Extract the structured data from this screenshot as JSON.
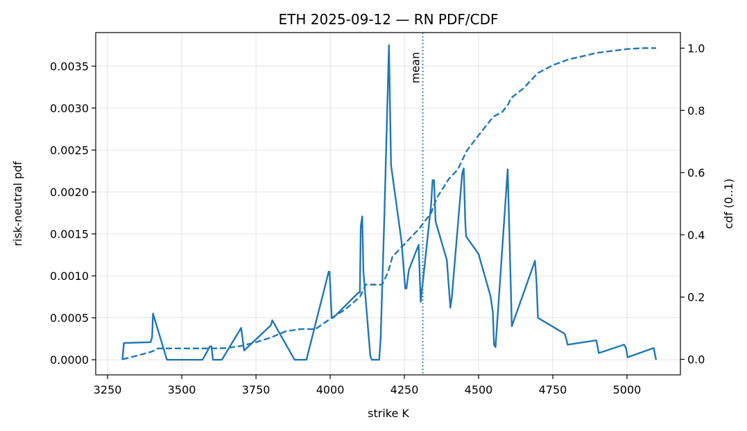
{
  "chart_data": {
    "type": "line",
    "title": "ETH 2025-09-12 — RN PDF/CDF",
    "xlabel": "strike  K",
    "ylabel": "risk-neutral pdf",
    "y2label": "cdf  (0..1)",
    "xlim": [
      3210,
      5180
    ],
    "ylim": [
      -0.00018,
      0.0039
    ],
    "y2lim": [
      -0.05,
      1.05
    ],
    "xticks": [
      3250,
      3500,
      3750,
      4000,
      4250,
      4500,
      4750,
      5000
    ],
    "xtick_labels": [
      "3250",
      "3500",
      "3750",
      "4000",
      "4250",
      "4500",
      "4750",
      "5000"
    ],
    "yticks": [
      0,
      0.0005,
      0.001,
      0.0015,
      0.002,
      0.0025,
      0.003,
      0.0035
    ],
    "ytick_labels": [
      "0.0000",
      "0.0005",
      "0.0010",
      "0.0015",
      "0.0020",
      "0.0025",
      "0.0030",
      "0.0035"
    ],
    "y2ticks": [
      0,
      0.2,
      0.4,
      0.6,
      0.8,
      1.0
    ],
    "y2tick_labels": [
      "0.0",
      "0.2",
      "0.4",
      "0.6",
      "0.8",
      "1.0"
    ],
    "grid": true,
    "color": "#1f77b4",
    "mean": {
      "x": 4312,
      "label": "mean"
    },
    "series": [
      {
        "name": "pdf",
        "axis": "left",
        "style": "solid",
        "points": [
          [
            3300,
            0.0
          ],
          [
            3305,
            0.0002
          ],
          [
            3395,
            0.00021
          ],
          [
            3400,
            0.00027
          ],
          [
            3403,
            0.00055
          ],
          [
            3450,
            0.0
          ],
          [
            3570,
            0.0
          ],
          [
            3595,
            0.00016
          ],
          [
            3600,
            0.00016
          ],
          [
            3605,
            0.0
          ],
          [
            3635,
            0.0
          ],
          [
            3700,
            0.00038
          ],
          [
            3710,
            0.00011
          ],
          [
            3800,
            0.00041
          ],
          [
            3805,
            0.00047
          ],
          [
            3880,
            0.0
          ],
          [
            3920,
            0.0
          ],
          [
            3995,
            0.00105
          ],
          [
            3998,
            0.00105
          ],
          [
            4005,
            0.0005
          ],
          [
            4010,
            0.0005
          ],
          [
            4095,
            0.0008
          ],
          [
            4100,
            0.0008
          ],
          [
            4103,
            0.00159
          ],
          [
            4108,
            0.00171
          ],
          [
            4112,
            0.00105
          ],
          [
            4135,
            5e-05
          ],
          [
            4140,
            0.0
          ],
          [
            4165,
            0.0
          ],
          [
            4170,
            0.00025
          ],
          [
            4182,
            0.00165
          ],
          [
            4198,
            0.00375
          ],
          [
            4205,
            0.00232
          ],
          [
            4240,
            0.00142
          ],
          [
            4253,
            0.00085
          ],
          [
            4257,
            0.00085
          ],
          [
            4265,
            0.00107
          ],
          [
            4298,
            0.00137
          ],
          [
            4305,
            0.00069
          ],
          [
            4340,
            0.00185
          ],
          [
            4345,
            0.00214
          ],
          [
            4350,
            0.00214
          ],
          [
            4355,
            0.00165
          ],
          [
            4393,
            0.00119
          ],
          [
            4405,
            0.00062
          ],
          [
            4410,
            0.00075
          ],
          [
            4445,
            0.00223
          ],
          [
            4450,
            0.00228
          ],
          [
            4455,
            0.00165
          ],
          [
            4458,
            0.00147
          ],
          [
            4500,
            0.00126
          ],
          [
            4540,
            0.00076
          ],
          [
            4548,
            0.00057
          ],
          [
            4552,
            0.00018
          ],
          [
            4557,
            0.00015
          ],
          [
            4598,
            0.00227
          ],
          [
            4612,
            0.0004
          ],
          [
            4690,
            0.00118
          ],
          [
            4695,
            0.00094
          ],
          [
            4700,
            0.0005
          ],
          [
            4790,
            0.00031
          ],
          [
            4795,
            0.00025
          ],
          [
            4800,
            0.00018
          ],
          [
            4893,
            0.00023
          ],
          [
            4897,
            0.00023
          ],
          [
            4905,
            8e-05
          ],
          [
            4990,
            0.00018
          ],
          [
            4997,
            0.00014
          ],
          [
            5002,
            3e-05
          ],
          [
            5090,
            0.00014
          ],
          [
            5098,
            0.0
          ]
        ]
      },
      {
        "name": "cdf",
        "axis": "right",
        "style": "dashed",
        "points": [
          [
            3300,
            0.0
          ],
          [
            3350,
            0.012
          ],
          [
            3400,
            0.025
          ],
          [
            3420,
            0.035
          ],
          [
            3450,
            0.035
          ],
          [
            3600,
            0.035
          ],
          [
            3650,
            0.036
          ],
          [
            3700,
            0.043
          ],
          [
            3750,
            0.055
          ],
          [
            3800,
            0.07
          ],
          [
            3850,
            0.09
          ],
          [
            3900,
            0.097
          ],
          [
            3950,
            0.097
          ],
          [
            4000,
            0.13
          ],
          [
            4050,
            0.16
          ],
          [
            4100,
            0.2
          ],
          [
            4120,
            0.24
          ],
          [
            4150,
            0.24
          ],
          [
            4175,
            0.24
          ],
          [
            4195,
            0.28
          ],
          [
            4210,
            0.33
          ],
          [
            4250,
            0.37
          ],
          [
            4300,
            0.42
          ],
          [
            4340,
            0.47
          ],
          [
            4360,
            0.52
          ],
          [
            4400,
            0.58
          ],
          [
            4430,
            0.61
          ],
          [
            4460,
            0.67
          ],
          [
            4500,
            0.72
          ],
          [
            4550,
            0.78
          ],
          [
            4580,
            0.795
          ],
          [
            4600,
            0.82
          ],
          [
            4610,
            0.84
          ],
          [
            4650,
            0.87
          ],
          [
            4700,
            0.92
          ],
          [
            4750,
            0.945
          ],
          [
            4800,
            0.963
          ],
          [
            4900,
            0.985
          ],
          [
            5000,
            0.997
          ],
          [
            5050,
            1.0
          ],
          [
            5098,
            1.0
          ]
        ]
      }
    ]
  }
}
